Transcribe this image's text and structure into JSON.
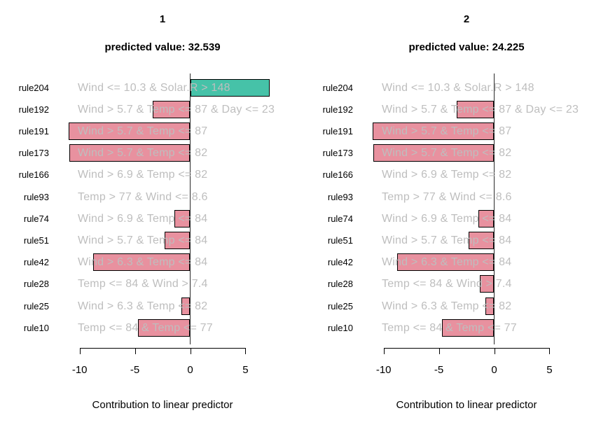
{
  "chart_data": {
    "type": "bar",
    "orientation": "horizontal",
    "xlabel": "Contribution to linear predictor",
    "x_ticks": [
      "-10",
      "-5",
      "0",
      "5"
    ],
    "x_tick_values": [
      -10,
      -5,
      0,
      5
    ],
    "xlim": [
      -11.5,
      7.6
    ],
    "grid": false,
    "legend_position": "none",
    "categories": [
      "rule204",
      "rule192",
      "rule191",
      "rule173",
      "rule166",
      "rule93",
      "rule74",
      "rule51",
      "rule42",
      "rule28",
      "rule25",
      "rule10"
    ],
    "conditions": [
      "Wind <= 10.3 & Solar.R > 148",
      "Wind > 5.7 & Temp <= 87 & Day <= 23",
      "Wind > 5.7 & Temp <= 87",
      "Wind > 5.7 & Temp <= 82",
      "Wind > 6.9 & Temp <= 82",
      "Temp > 77 & Wind <= 8.6",
      "Wind > 6.9 & Temp <= 84",
      "Wind > 5.7 & Temp <= 84",
      "Wind > 6.3 & Temp <= 84",
      "Temp <= 84 & Wind > 7.4",
      "Wind > 6.3 & Temp <= 82",
      "Temp <= 84 & Temp <= 77"
    ],
    "panels": [
      {
        "label": "1",
        "predicted_label": "predicted value: 32.539",
        "predicted_value": 32.539,
        "values": [
          7.2,
          -3.4,
          -11.0,
          -10.9,
          0,
          0,
          -1.4,
          -2.3,
          -8.8,
          0,
          -0.8,
          -4.7
        ]
      },
      {
        "label": "2",
        "predicted_label": "predicted value: 24.225",
        "predicted_value": 24.225,
        "values": [
          0,
          -3.4,
          -11.0,
          -10.9,
          0,
          0,
          -1.4,
          -2.3,
          -8.8,
          -1.3,
          -0.8,
          -4.7
        ]
      }
    ],
    "colors": {
      "positive_bar": "#46C2A8",
      "negative_bar": "#E8919F",
      "bar_border": "#000000",
      "condition_text": "#BEBEBE",
      "rule_text": "#000000",
      "axis": "#000000",
      "background": "#FFFFFF"
    }
  }
}
